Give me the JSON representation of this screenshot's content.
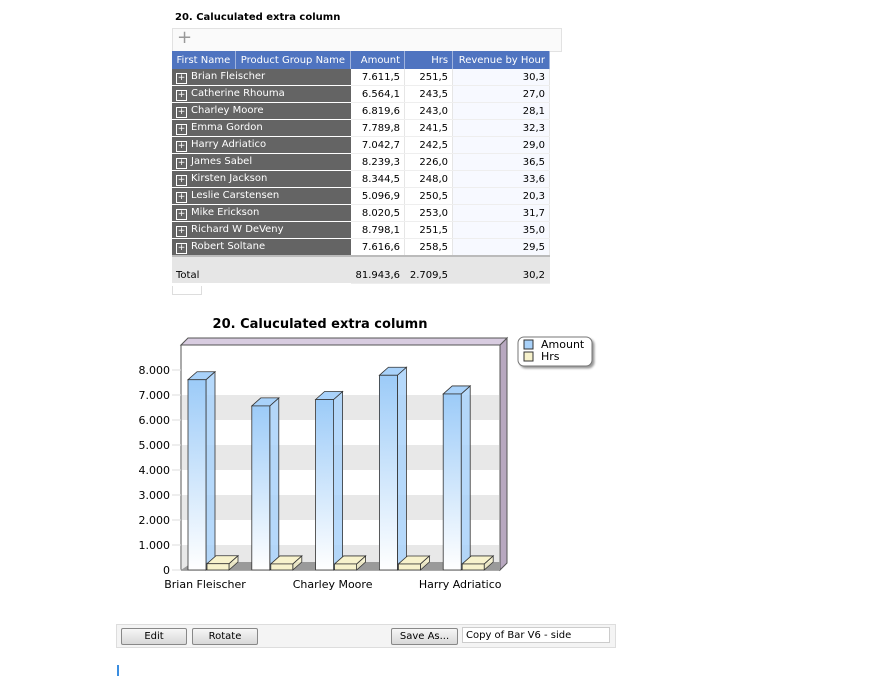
{
  "report": {
    "title": "20. Caluculated extra column"
  },
  "table": {
    "headers": [
      "First Name",
      "Product Group Name",
      "Amount",
      "Hrs",
      "Revenue by Hour"
    ],
    "rows": [
      {
        "name": "Brian Fleischer",
        "amount": "7.611,5",
        "hrs": "251,5",
        "revenue": "30,3"
      },
      {
        "name": "Catherine Rhouma",
        "amount": "6.564,1",
        "hrs": "243,5",
        "revenue": "27,0"
      },
      {
        "name": "Charley Moore",
        "amount": "6.819,6",
        "hrs": "243,0",
        "revenue": "28,1"
      },
      {
        "name": "Emma Gordon",
        "amount": "7.789,8",
        "hrs": "241,5",
        "revenue": "32,3"
      },
      {
        "name": "Harry Adriatico",
        "amount": "7.042,7",
        "hrs": "242,5",
        "revenue": "29,0"
      },
      {
        "name": "James Sabel",
        "amount": "8.239,3",
        "hrs": "226,0",
        "revenue": "36,5"
      },
      {
        "name": "Kirsten Jackson",
        "amount": "8.344,5",
        "hrs": "248,0",
        "revenue": "33,6"
      },
      {
        "name": "Leslie Carstensen",
        "amount": "5.096,9",
        "hrs": "250,5",
        "revenue": "20,3"
      },
      {
        "name": "Mike Erickson",
        "amount": "8.020,5",
        "hrs": "253,0",
        "revenue": "31,7"
      },
      {
        "name": "Richard W DeVeny",
        "amount": "8.798,1",
        "hrs": "251,5",
        "revenue": "35,0"
      },
      {
        "name": "Robert Soltane",
        "amount": "7.616,6",
        "hrs": "258,5",
        "revenue": "29,5"
      }
    ],
    "total": {
      "label": "Total",
      "amount": "81.943,6",
      "hrs": "2.709,5",
      "revenue": "30,2"
    }
  },
  "chart_data": {
    "type": "bar",
    "title": "20. Caluculated extra column",
    "categories": [
      "Brian Fleischer",
      null,
      "Charley Moore",
      null,
      "Harry Adriatico"
    ],
    "series": [
      {
        "name": "Amount",
        "color": "#a9d2fa",
        "values": [
          7611.5,
          6564.1,
          6819.6,
          7789.8,
          7042.7
        ]
      },
      {
        "name": "Hrs",
        "color": "#f7f2cc",
        "values": [
          251.5,
          243.5,
          243.0,
          241.5,
          242.5
        ]
      }
    ],
    "ylim": [
      0,
      9000
    ],
    "yticks": [
      0,
      {
        "value": 1000,
        "label": "1.000"
      },
      {
        "value": 2000,
        "label": "2.000"
      },
      {
        "value": 3000,
        "label": "3.000"
      },
      {
        "value": 4000,
        "label": "4.000"
      },
      {
        "value": 5000,
        "label": "5.000"
      },
      {
        "value": 6000,
        "label": "6.000"
      },
      {
        "value": 7000,
        "label": "7.000"
      },
      {
        "value": 8000,
        "label": "8.000"
      }
    ],
    "grid": true,
    "legend": "right"
  },
  "controls": {
    "buttons": [
      "Edit",
      "Rotate",
      "Save As..."
    ],
    "save_name": "Copy of Bar V6 - side"
  }
}
